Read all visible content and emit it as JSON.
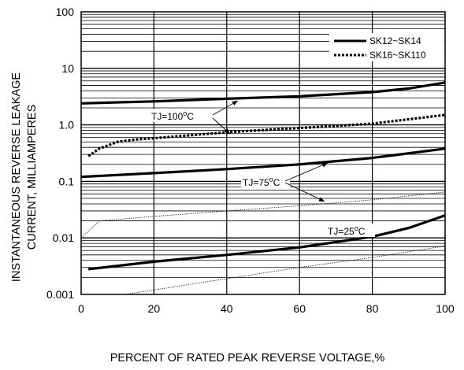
{
  "chart_data": {
    "type": "line",
    "xlabel": "PERCENT OF RATED PEAK REVERSE VOLTAGE,%",
    "ylabel_line1": "INSTANTANEOUS REVERSE LEAKAGE",
    "ylabel_line2": "CURRENT, MILLIAMPERES",
    "xlim": [
      0,
      100
    ],
    "ylim": [
      0.001,
      100
    ],
    "y_scale": "log",
    "grid": true,
    "x_ticks": [
      0,
      20,
      40,
      60,
      80,
      100
    ],
    "x_tick_labels": [
      "0",
      "20",
      "40",
      "60",
      "80",
      "100"
    ],
    "y_ticks": [
      0.001,
      0.01,
      0.1,
      1,
      10,
      100
    ],
    "y_tick_labels": [
      "0.001",
      "0.01",
      "0.1",
      "1.0",
      "10",
      "100"
    ],
    "legend_position": "top-right",
    "legend": [
      {
        "label": "SK12~SK14",
        "style": "solid"
      },
      {
        "label": "SK16~SK110",
        "style": "dotted"
      }
    ],
    "series": [
      {
        "group": "SK12~SK14",
        "condition": "TJ=100°C",
        "style": "solid",
        "x": [
          0,
          20,
          40,
          60,
          80,
          90,
          100
        ],
        "y": [
          2.4,
          2.6,
          2.9,
          3.2,
          3.8,
          4.4,
          5.6
        ]
      },
      {
        "group": "SK16~SK110",
        "condition": "TJ=100°C",
        "style": "dotted",
        "x": [
          2,
          5,
          10,
          15,
          20,
          40,
          60,
          80,
          100
        ],
        "y": [
          0.28,
          0.38,
          0.5,
          0.55,
          0.58,
          0.74,
          0.88,
          1.05,
          1.5
        ]
      },
      {
        "group": "SK12~SK14",
        "condition": "TJ=75°C",
        "style": "solid",
        "x": [
          0,
          20,
          40,
          60,
          80,
          100
        ],
        "y": [
          0.12,
          0.14,
          0.165,
          0.2,
          0.26,
          0.38
        ]
      },
      {
        "group": "SK16~SK110",
        "condition": "TJ=75°C",
        "style": "thin",
        "x": [
          0,
          5,
          20,
          40,
          60,
          80,
          100
        ],
        "y": [
          0.01,
          0.02,
          0.024,
          0.03,
          0.037,
          0.047,
          0.065
        ]
      },
      {
        "group": "SK12~SK14",
        "condition": "TJ=25°C",
        "style": "solid",
        "x": [
          2,
          20,
          40,
          60,
          80,
          90,
          100
        ],
        "y": [
          0.0028,
          0.0038,
          0.005,
          0.0068,
          0.0105,
          0.015,
          0.025
        ]
      },
      {
        "group": "SK16~SK110",
        "condition": "TJ=25°C",
        "style": "thin",
        "x": [
          12,
          40,
          60,
          80,
          100
        ],
        "y": [
          0.001,
          0.0019,
          0.003,
          0.0045,
          0.0072
        ]
      }
    ],
    "annotations": [
      {
        "base": "TJ=100",
        "sup": "o",
        "unit": "C"
      },
      {
        "base": "TJ=75",
        "sup": "o",
        "unit": "C"
      },
      {
        "base": "TJ=25",
        "sup": "o",
        "unit": "C"
      }
    ]
  }
}
